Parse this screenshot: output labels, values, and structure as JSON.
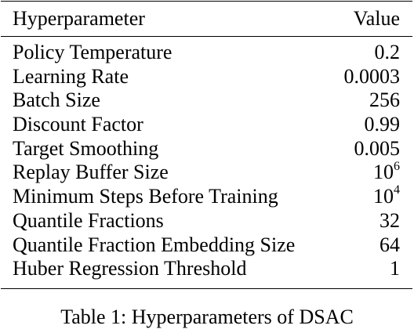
{
  "table": {
    "header": {
      "param": "Hyperparameter",
      "value": "Value"
    },
    "rows": [
      {
        "param": "Policy Temperature",
        "value": "0.2",
        "exp": ""
      },
      {
        "param": "Learning Rate",
        "value": "0.0003",
        "exp": ""
      },
      {
        "param": "Batch Size",
        "value": "256",
        "exp": ""
      },
      {
        "param": "Discount Factor",
        "value": "0.99",
        "exp": ""
      },
      {
        "param": "Target Smoothing",
        "value": "0.005",
        "exp": ""
      },
      {
        "param": "Replay Buffer Size",
        "value": "10",
        "exp": "6"
      },
      {
        "param": "Minimum Steps Before Training",
        "value": "10",
        "exp": "4"
      },
      {
        "param": "Quantile Fractions",
        "value": "32",
        "exp": ""
      },
      {
        "param": "Quantile Fraction Embedding Size",
        "value": "64",
        "exp": ""
      },
      {
        "param": "Huber Regression Threshold",
        "value": "1",
        "exp": ""
      }
    ]
  },
  "caption": "Table 1: Hyperparameters of DSAC"
}
